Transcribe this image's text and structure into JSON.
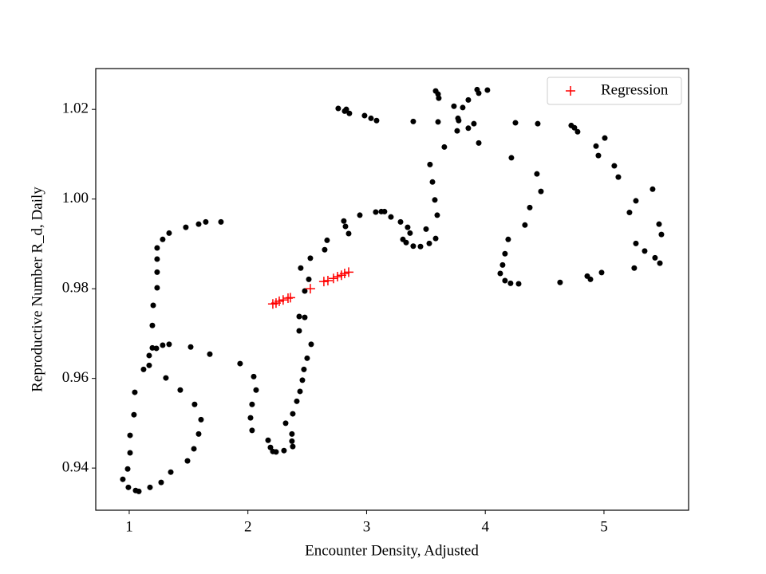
{
  "chart_data": {
    "type": "scatter",
    "x_label": "Encounter Density, Adjusted",
    "y_label": "Reproductive Number R_d, Daily",
    "xlim": [
      0.718,
      5.713
    ],
    "ylim": [
      0.9306,
      1.0291
    ],
    "xticks": [
      1,
      2,
      3,
      4,
      5
    ],
    "yticks": [
      0.94,
      0.96,
      0.98,
      {
        "value": 1,
        "label": "1.00"
      },
      1.02
    ],
    "legend": "upper right",
    "series": [
      {
        "color": "#000000",
        "marker": "dot",
        "x": [
          0.946,
          0.987,
          0.993,
          1.007,
          1.007,
          1.04,
          1.047,
          1.054,
          1.081,
          1.121,
          1.168,
          1.175,
          1.168,
          1.195,
          1.195,
          1.202,
          1.229,
          1.235,
          1.235,
          1.235,
          1.235,
          1.269,
          1.282,
          1.282,
          1.309,
          1.336,
          1.336,
          1.35,
          1.43,
          1.477,
          1.491,
          1.518,
          1.545,
          1.551,
          1.585,
          1.585,
          1.605,
          1.645,
          1.679,
          1.773,
          1.934,
          2.049,
          2.069,
          2.035,
          2.022,
          2.035,
          2.17,
          2.19,
          2.21,
          2.237,
          2.304,
          2.318,
          2.371,
          2.371,
          2.378,
          2.378,
          2.412,
          2.432,
          2.432,
          2.439,
          2.445,
          2.459,
          2.472,
          2.479,
          2.479,
          2.499,
          2.513,
          2.526,
          2.533,
          2.647,
          2.667,
          2.808,
          2.822,
          2.849,
          2.943,
          3.077,
          3.124,
          3.151,
          3.205,
          3.286,
          3.306,
          3.333,
          3.346,
          3.366,
          3.393,
          3.454,
          3.528,
          3.501,
          3.582,
          3.595,
          3.575,
          3.555,
          3.534,
          3.393,
          3.602,
          3.655,
          3.582,
          3.602,
          3.608,
          2.761,
          2.815,
          2.829,
          2.855,
          2.983,
          3.037,
          3.084,
          3.736,
          3.77,
          3.776,
          3.763,
          3.81,
          3.857,
          3.857,
          3.904,
          3.931,
          3.945,
          3.945,
          4.018,
          4.22,
          4.254,
          4.334,
          4.375,
          4.435,
          4.469,
          4.442,
          4.193,
          4.166,
          4.146,
          4.126,
          4.166,
          4.213,
          4.281,
          4.63,
          4.724,
          4.751,
          4.778,
          4.859,
          4.886,
          4.933,
          4.953,
          4.98,
          5.007,
          5.087,
          5.121,
          5.215,
          5.255,
          5.269,
          5.269,
          5.343,
          5.41,
          5.43,
          5.464,
          5.484,
          5.471
        ],
        "y": [
          0.9375,
          0.9398,
          0.9357,
          0.9434,
          0.9473,
          0.9519,
          0.9569,
          0.935,
          0.9348,
          0.962,
          0.9629,
          0.9357,
          0.9651,
          0.9668,
          0.9718,
          0.9763,
          0.9667,
          0.9802,
          0.9837,
          0.9866,
          0.9891,
          0.9368,
          0.9674,
          0.991,
          0.9601,
          0.9676,
          0.9924,
          0.9391,
          0.9574,
          0.9937,
          0.9416,
          0.967,
          0.9443,
          0.9542,
          0.9944,
          0.9476,
          0.9508,
          0.9949,
          0.9654,
          0.9949,
          0.9633,
          0.9604,
          0.9574,
          0.9542,
          0.9512,
          0.9484,
          0.9462,
          0.9446,
          0.9437,
          0.9436,
          0.9439,
          0.95,
          0.9476,
          0.946,
          0.9448,
          0.9521,
          0.9549,
          0.9738,
          0.9706,
          0.9571,
          0.9846,
          0.9596,
          0.962,
          0.9795,
          0.9736,
          0.9645,
          0.9821,
          0.9868,
          0.9676,
          0.9887,
          0.9908,
          0.9951,
          0.9939,
          0.9923,
          0.9964,
          0.9971,
          0.9972,
          0.9972,
          0.996,
          0.9949,
          0.991,
          0.9903,
          0.9937,
          0.9924,
          0.9895,
          0.9894,
          0.9901,
          0.9933,
          0.9912,
          0.9964,
          0.9998,
          1.0038,
          1.0077,
          1.0173,
          1.0172,
          1.0116,
          1.0241,
          1.0234,
          1.0225,
          1.0202,
          1.0196,
          1.02,
          1.0191,
          1.0186,
          1.018,
          1.0175,
          1.0207,
          1.018,
          1.0175,
          1.0152,
          1.0204,
          1.0221,
          1.0158,
          1.0168,
          1.0244,
          1.0236,
          1.0125,
          1.0243,
          1.0092,
          1.017,
          0.9942,
          0.9981,
          1.0056,
          1.0017,
          1.0168,
          0.991,
          0.9878,
          0.9853,
          0.9834,
          0.9818,
          0.9812,
          0.9811,
          0.9814,
          1.0164,
          1.0159,
          1.015,
          0.9828,
          0.9821,
          1.0118,
          1.0097,
          0.9836,
          1.0136,
          1.0074,
          1.0049,
          0.997,
          0.9846,
          0.9996,
          0.9901,
          0.9884,
          1.0022,
          0.9869,
          0.9944,
          0.9921,
          0.9857
        ]
      },
      {
        "name": "Regression",
        "color": "#ff0000",
        "marker": "plus",
        "x": [
          2.21,
          2.237,
          2.264,
          2.297,
          2.338,
          2.358,
          2.526,
          2.64,
          2.674,
          2.721,
          2.755,
          2.788,
          2.815,
          2.849
        ],
        "y": [
          0.9766,
          0.9768,
          0.9772,
          0.9775,
          0.9779,
          0.978,
          0.98,
          0.9816,
          0.9818,
          0.9823,
          0.9827,
          0.983,
          0.9834,
          0.9837
        ]
      }
    ]
  }
}
